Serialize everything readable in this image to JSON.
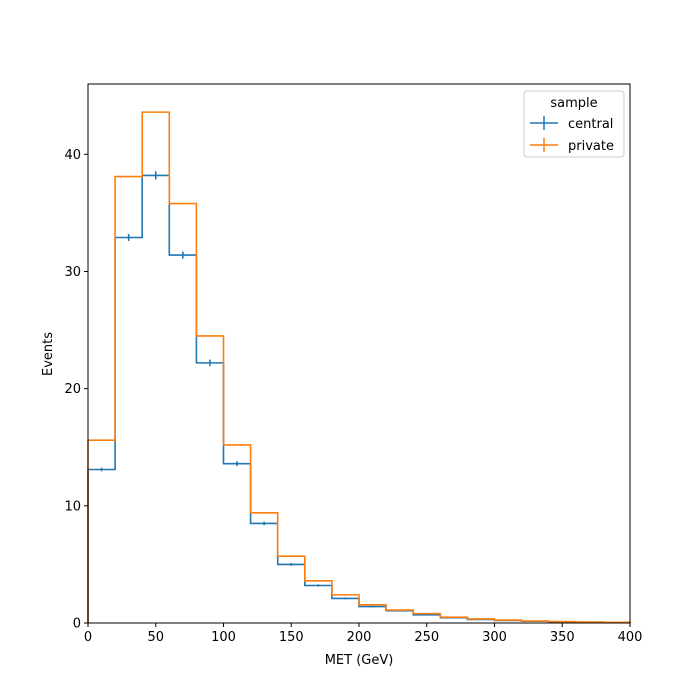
{
  "chart_data": {
    "type": "step-histogram",
    "xlabel": "MET (GeV)",
    "ylabel": "Events",
    "xlim": [
      0,
      400
    ],
    "ylim": [
      0,
      46
    ],
    "x_ticks": [
      "0",
      "50",
      "100",
      "150",
      "200",
      "250",
      "300",
      "350",
      "400"
    ],
    "y_ticks": [
      "0",
      "10",
      "20",
      "30",
      "40"
    ],
    "bin_edges": [
      0,
      20,
      40,
      60,
      80,
      100,
      120,
      140,
      160,
      180,
      200,
      220,
      240,
      260,
      280,
      300,
      320,
      340,
      360,
      380,
      400
    ],
    "grid": false,
    "legend": {
      "title": "sample",
      "placement": "upper right"
    },
    "series": [
      {
        "name": "central",
        "color": "#1f77b4",
        "values": [
          13.1,
          32.9,
          38.2,
          31.4,
          22.2,
          13.6,
          8.5,
          5.0,
          3.2,
          2.1,
          1.4,
          1.05,
          0.7,
          0.45,
          0.3,
          0.22,
          0.15,
          0.1,
          0.07,
          0.05
        ],
        "errors": [
          0.15,
          0.3,
          0.35,
          0.3,
          0.28,
          0.2,
          0.15,
          0.12,
          0.1,
          0.08,
          0.07,
          0.06,
          0.05,
          0.04,
          0.03,
          0.03,
          0.02,
          0.02,
          0.02,
          0.01
        ]
      },
      {
        "name": "private",
        "color": "#ff7f0e",
        "values": [
          15.6,
          38.1,
          43.6,
          35.8,
          24.5,
          15.2,
          9.4,
          5.7,
          3.6,
          2.4,
          1.55,
          1.1,
          0.8,
          0.5,
          0.35,
          0.25,
          0.17,
          0.12,
          0.08,
          0.06
        ],
        "errors": [
          0.05,
          0.05,
          0.05,
          0.05,
          0.05,
          0.05,
          0.05,
          0.05,
          0.05,
          0.05,
          0.04,
          0.04,
          0.03,
          0.03,
          0.02,
          0.02,
          0.02,
          0.02,
          0.01,
          0.01
        ]
      }
    ]
  }
}
